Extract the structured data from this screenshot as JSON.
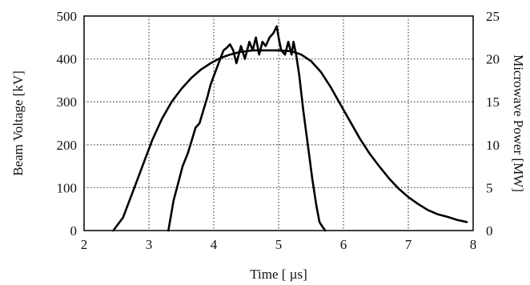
{
  "chart_data": {
    "type": "line",
    "xlabel": "Time [ µs]",
    "ylabel": "Beam Voltage [kV]",
    "y2label": "Microwave Power [MW]",
    "xlim": [
      2,
      8
    ],
    "ylim": [
      0,
      500
    ],
    "y2lim": [
      0,
      25
    ],
    "x_ticks": [
      "2",
      "3",
      "4",
      "5",
      "6",
      "7",
      "8"
    ],
    "y_ticks": [
      "0",
      "100",
      "200",
      "300",
      "400",
      "500"
    ],
    "y2_ticks": [
      "0",
      "5",
      "10",
      "15",
      "20",
      "25"
    ],
    "grid": true,
    "series": [
      {
        "axis": "left",
        "x": [
          2.45,
          2.6,
          2.75,
          2.9,
          3.05,
          3.2,
          3.35,
          3.5,
          3.65,
          3.8,
          3.95,
          4.1,
          4.25,
          4.4,
          4.6,
          4.8,
          5.0,
          5.2,
          5.35,
          5.5,
          5.65,
          5.8,
          5.95,
          6.1,
          6.25,
          6.4,
          6.55,
          6.7,
          6.85,
          7.0,
          7.15,
          7.3,
          7.45,
          7.6,
          7.75,
          7.9
        ],
        "y": [
          0,
          30,
          90,
          150,
          210,
          260,
          300,
          330,
          355,
          375,
          390,
          402,
          410,
          416,
          420,
          420,
          420,
          418,
          410,
          395,
          370,
          335,
          295,
          255,
          215,
          180,
          150,
          122,
          98,
          78,
          62,
          48,
          38,
          32,
          25,
          20
        ]
      },
      {
        "axis": "right",
        "x": [
          3.3,
          3.38,
          3.45,
          3.52,
          3.6,
          3.66,
          3.72,
          3.78,
          3.84,
          3.9,
          3.95,
          4.0,
          4.05,
          4.1,
          4.15,
          4.2,
          4.25,
          4.3,
          4.35,
          4.42,
          4.48,
          4.55,
          4.6,
          4.65,
          4.7,
          4.75,
          4.8,
          4.86,
          4.92,
          4.97,
          5.0,
          5.04,
          5.1,
          5.15,
          5.2,
          5.23,
          5.27,
          5.32,
          5.38,
          5.45,
          5.52,
          5.58,
          5.63,
          5.68,
          5.72
        ],
        "y": [
          0,
          3.5,
          5.5,
          7.5,
          9.0,
          10.5,
          12.0,
          12.5,
          14.0,
          15.5,
          17.0,
          18.0,
          19.0,
          20.0,
          21.0,
          21.3,
          21.7,
          21.0,
          19.5,
          21.5,
          20.0,
          22.0,
          21.0,
          22.5,
          20.5,
          22.0,
          21.5,
          22.5,
          23.0,
          23.8,
          22.5,
          21.0,
          20.5,
          22.0,
          20.5,
          22.0,
          20.5,
          18.0,
          14.0,
          10.0,
          6.0,
          3.0,
          1.0,
          0.4,
          0
        ]
      }
    ]
  }
}
